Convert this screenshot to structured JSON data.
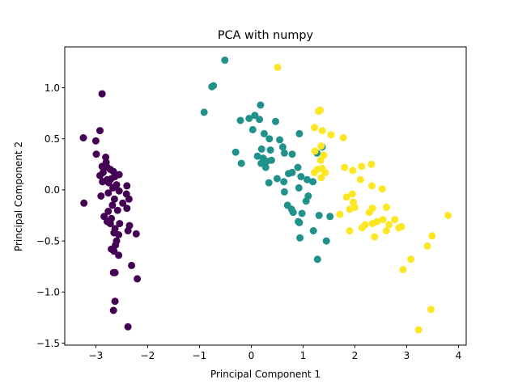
{
  "chart_data": {
    "type": "scatter",
    "title": "PCA with numpy",
    "xlabel": "Principal Component 1",
    "ylabel": "Principal Component 2",
    "xlim": [
      -3.6,
      4.15
    ],
    "ylim": [
      -1.52,
      1.4
    ],
    "xticks": [
      -3,
      -2,
      -1,
      0,
      1,
      2,
      3,
      4
    ],
    "xtick_labels": [
      "−3",
      "−2",
      "−1",
      "0",
      "1",
      "2",
      "3",
      "4"
    ],
    "yticks": [
      -1.5,
      -1.0,
      -0.5,
      0.0,
      0.5,
      1.0
    ],
    "ytick_labels": [
      "−1.5",
      "−1.0",
      "−0.5",
      "0.0",
      "0.5",
      "1.0"
    ],
    "grid": false,
    "series": [
      {
        "color": "#440154",
        "points": [
          [
            -2.88,
            0.94
          ],
          [
            -2.92,
            0.58
          ],
          [
            -3.0,
            0.48
          ],
          [
            -3.24,
            0.51
          ],
          [
            -2.99,
            0.35
          ],
          [
            -2.81,
            0.32
          ],
          [
            -2.8,
            0.27
          ],
          [
            -2.88,
            0.23
          ],
          [
            -2.86,
            0.17
          ],
          [
            -2.78,
            0.22
          ],
          [
            -2.72,
            0.2
          ],
          [
            -2.66,
            0.18
          ],
          [
            -2.55,
            0.15
          ],
          [
            -2.63,
            0.13
          ],
          [
            -2.92,
            0.14
          ],
          [
            -2.78,
            0.1
          ],
          [
            -2.7,
            0.11
          ],
          [
            -2.87,
            0.08
          ],
          [
            -2.75,
            0.07
          ],
          [
            -2.6,
            0.05
          ],
          [
            -2.4,
            0.04
          ],
          [
            -2.67,
            0.02
          ],
          [
            -2.55,
            -0.01
          ],
          [
            -2.76,
            -0.03
          ],
          [
            -2.41,
            -0.04
          ],
          [
            -2.9,
            -0.06
          ],
          [
            -2.64,
            -0.09
          ],
          [
            -2.36,
            -0.09
          ],
          [
            -2.48,
            -0.13
          ],
          [
            -3.23,
            -0.13
          ],
          [
            -2.68,
            -0.15
          ],
          [
            -2.4,
            -0.18
          ],
          [
            -2.58,
            -0.2
          ],
          [
            -2.76,
            -0.21
          ],
          [
            -2.84,
            -0.26
          ],
          [
            -2.7,
            -0.28
          ],
          [
            -2.78,
            -0.31
          ],
          [
            -2.72,
            -0.33
          ],
          [
            -2.54,
            -0.33
          ],
          [
            -2.35,
            -0.35
          ],
          [
            -2.63,
            -0.38
          ],
          [
            -2.38,
            -0.4
          ],
          [
            -2.65,
            -0.42
          ],
          [
            -2.56,
            -0.44
          ],
          [
            -2.22,
            -0.43
          ],
          [
            -2.6,
            -0.5
          ],
          [
            -2.62,
            -0.54
          ],
          [
            -2.65,
            -0.6
          ],
          [
            -2.56,
            -0.64
          ],
          [
            -2.7,
            -0.58
          ],
          [
            -2.63,
            -0.81
          ],
          [
            -2.66,
            -0.81
          ],
          [
            -2.31,
            -0.74
          ],
          [
            -2.2,
            -0.87
          ],
          [
            -2.63,
            -1.09
          ],
          [
            -2.66,
            -1.18
          ],
          [
            -2.38,
            -1.34
          ]
        ]
      },
      {
        "color": "#21918c",
        "points": [
          [
            -0.51,
            1.27
          ],
          [
            -0.76,
            1.01
          ],
          [
            -0.73,
            1.02
          ],
          [
            -0.91,
            0.76
          ],
          [
            0.18,
            0.83
          ],
          [
            0.07,
            0.73
          ],
          [
            -0.21,
            0.68
          ],
          [
            -0.04,
            0.7
          ],
          [
            0.16,
            0.69
          ],
          [
            0.47,
            0.67
          ],
          [
            0.03,
            0.59
          ],
          [
            0.25,
            0.55
          ],
          [
            0.35,
            0.5
          ],
          [
            0.61,
            0.42
          ],
          [
            0.55,
            0.49
          ],
          [
            0.93,
            0.55
          ],
          [
            0.2,
            0.4
          ],
          [
            0.37,
            0.39
          ],
          [
            0.64,
            0.36
          ],
          [
            0.79,
            0.35
          ],
          [
            0.12,
            0.33
          ],
          [
            0.23,
            0.31
          ],
          [
            0.3,
            0.28
          ],
          [
            0.19,
            0.26
          ],
          [
            0.39,
            0.29
          ],
          [
            0.28,
            0.22
          ],
          [
            -0.3,
            0.37
          ],
          [
            -0.19,
            0.26
          ],
          [
            1.27,
            0.36
          ],
          [
            1.37,
            0.42
          ],
          [
            0.72,
            0.16
          ],
          [
            0.79,
            0.17
          ],
          [
            0.9,
            0.22
          ],
          [
            0.96,
            0.13
          ],
          [
            1.08,
            0.1
          ],
          [
            1.19,
            0.08
          ],
          [
            0.5,
            0.11
          ],
          [
            0.34,
            0.07
          ],
          [
            0.63,
            0.08
          ],
          [
            0.64,
            -0.02
          ],
          [
            0.92,
            0.02
          ],
          [
            1.1,
            -0.06
          ],
          [
            1.06,
            -0.11
          ],
          [
            0.7,
            -0.15
          ],
          [
            0.78,
            -0.19
          ],
          [
            0.81,
            -0.22
          ],
          [
            0.98,
            -0.23
          ],
          [
            0.91,
            -0.31
          ],
          [
            0.93,
            -0.32
          ],
          [
            1.2,
            -0.4
          ],
          [
            1.31,
            -0.25
          ],
          [
            1.52,
            -0.26
          ],
          [
            0.94,
            -0.47
          ],
          [
            1.45,
            -0.5
          ],
          [
            1.28,
            -0.68
          ]
        ]
      },
      {
        "color": "#fde725",
        "points": [
          [
            0.51,
            1.2
          ],
          [
            1.3,
            0.77
          ],
          [
            1.33,
            0.78
          ],
          [
            1.22,
            0.61
          ],
          [
            1.37,
            0.58
          ],
          [
            1.54,
            0.54
          ],
          [
            1.78,
            0.51
          ],
          [
            1.35,
            0.43
          ],
          [
            1.23,
            0.38
          ],
          [
            1.4,
            0.34
          ],
          [
            1.34,
            0.29
          ],
          [
            1.28,
            0.2
          ],
          [
            1.37,
            0.21
          ],
          [
            1.43,
            0.17
          ],
          [
            1.22,
            0.17
          ],
          [
            1.35,
            0.12
          ],
          [
            1.8,
            0.22
          ],
          [
            1.96,
            0.19
          ],
          [
            2.13,
            0.23
          ],
          [
            2.32,
            0.25
          ],
          [
            2.11,
            0.1
          ],
          [
            2.33,
            0.04
          ],
          [
            2.53,
            0.01
          ],
          [
            1.95,
            -0.04
          ],
          [
            1.84,
            -0.07
          ],
          [
            1.97,
            -0.12
          ],
          [
            2.0,
            -0.17
          ],
          [
            2.34,
            -0.18
          ],
          [
            1.9,
            -0.19
          ],
          [
            2.28,
            -0.22
          ],
          [
            2.61,
            -0.17
          ],
          [
            1.71,
            -0.24
          ],
          [
            2.43,
            -0.31
          ],
          [
            2.54,
            -0.29
          ],
          [
            2.34,
            -0.33
          ],
          [
            2.2,
            -0.34
          ],
          [
            2.77,
            -0.29
          ],
          [
            2.66,
            -0.34
          ],
          [
            2.9,
            -0.36
          ],
          [
            2.85,
            -0.37
          ],
          [
            1.9,
            -0.4
          ],
          [
            2.14,
            -0.37
          ],
          [
            2.38,
            -0.46
          ],
          [
            2.61,
            -0.4
          ],
          [
            3.49,
            -0.45
          ],
          [
            3.4,
            -0.55
          ],
          [
            3.8,
            -0.25
          ],
          [
            3.08,
            -0.68
          ],
          [
            2.93,
            -0.78
          ],
          [
            3.47,
            -1.17
          ],
          [
            3.23,
            -1.37
          ]
        ]
      }
    ]
  }
}
